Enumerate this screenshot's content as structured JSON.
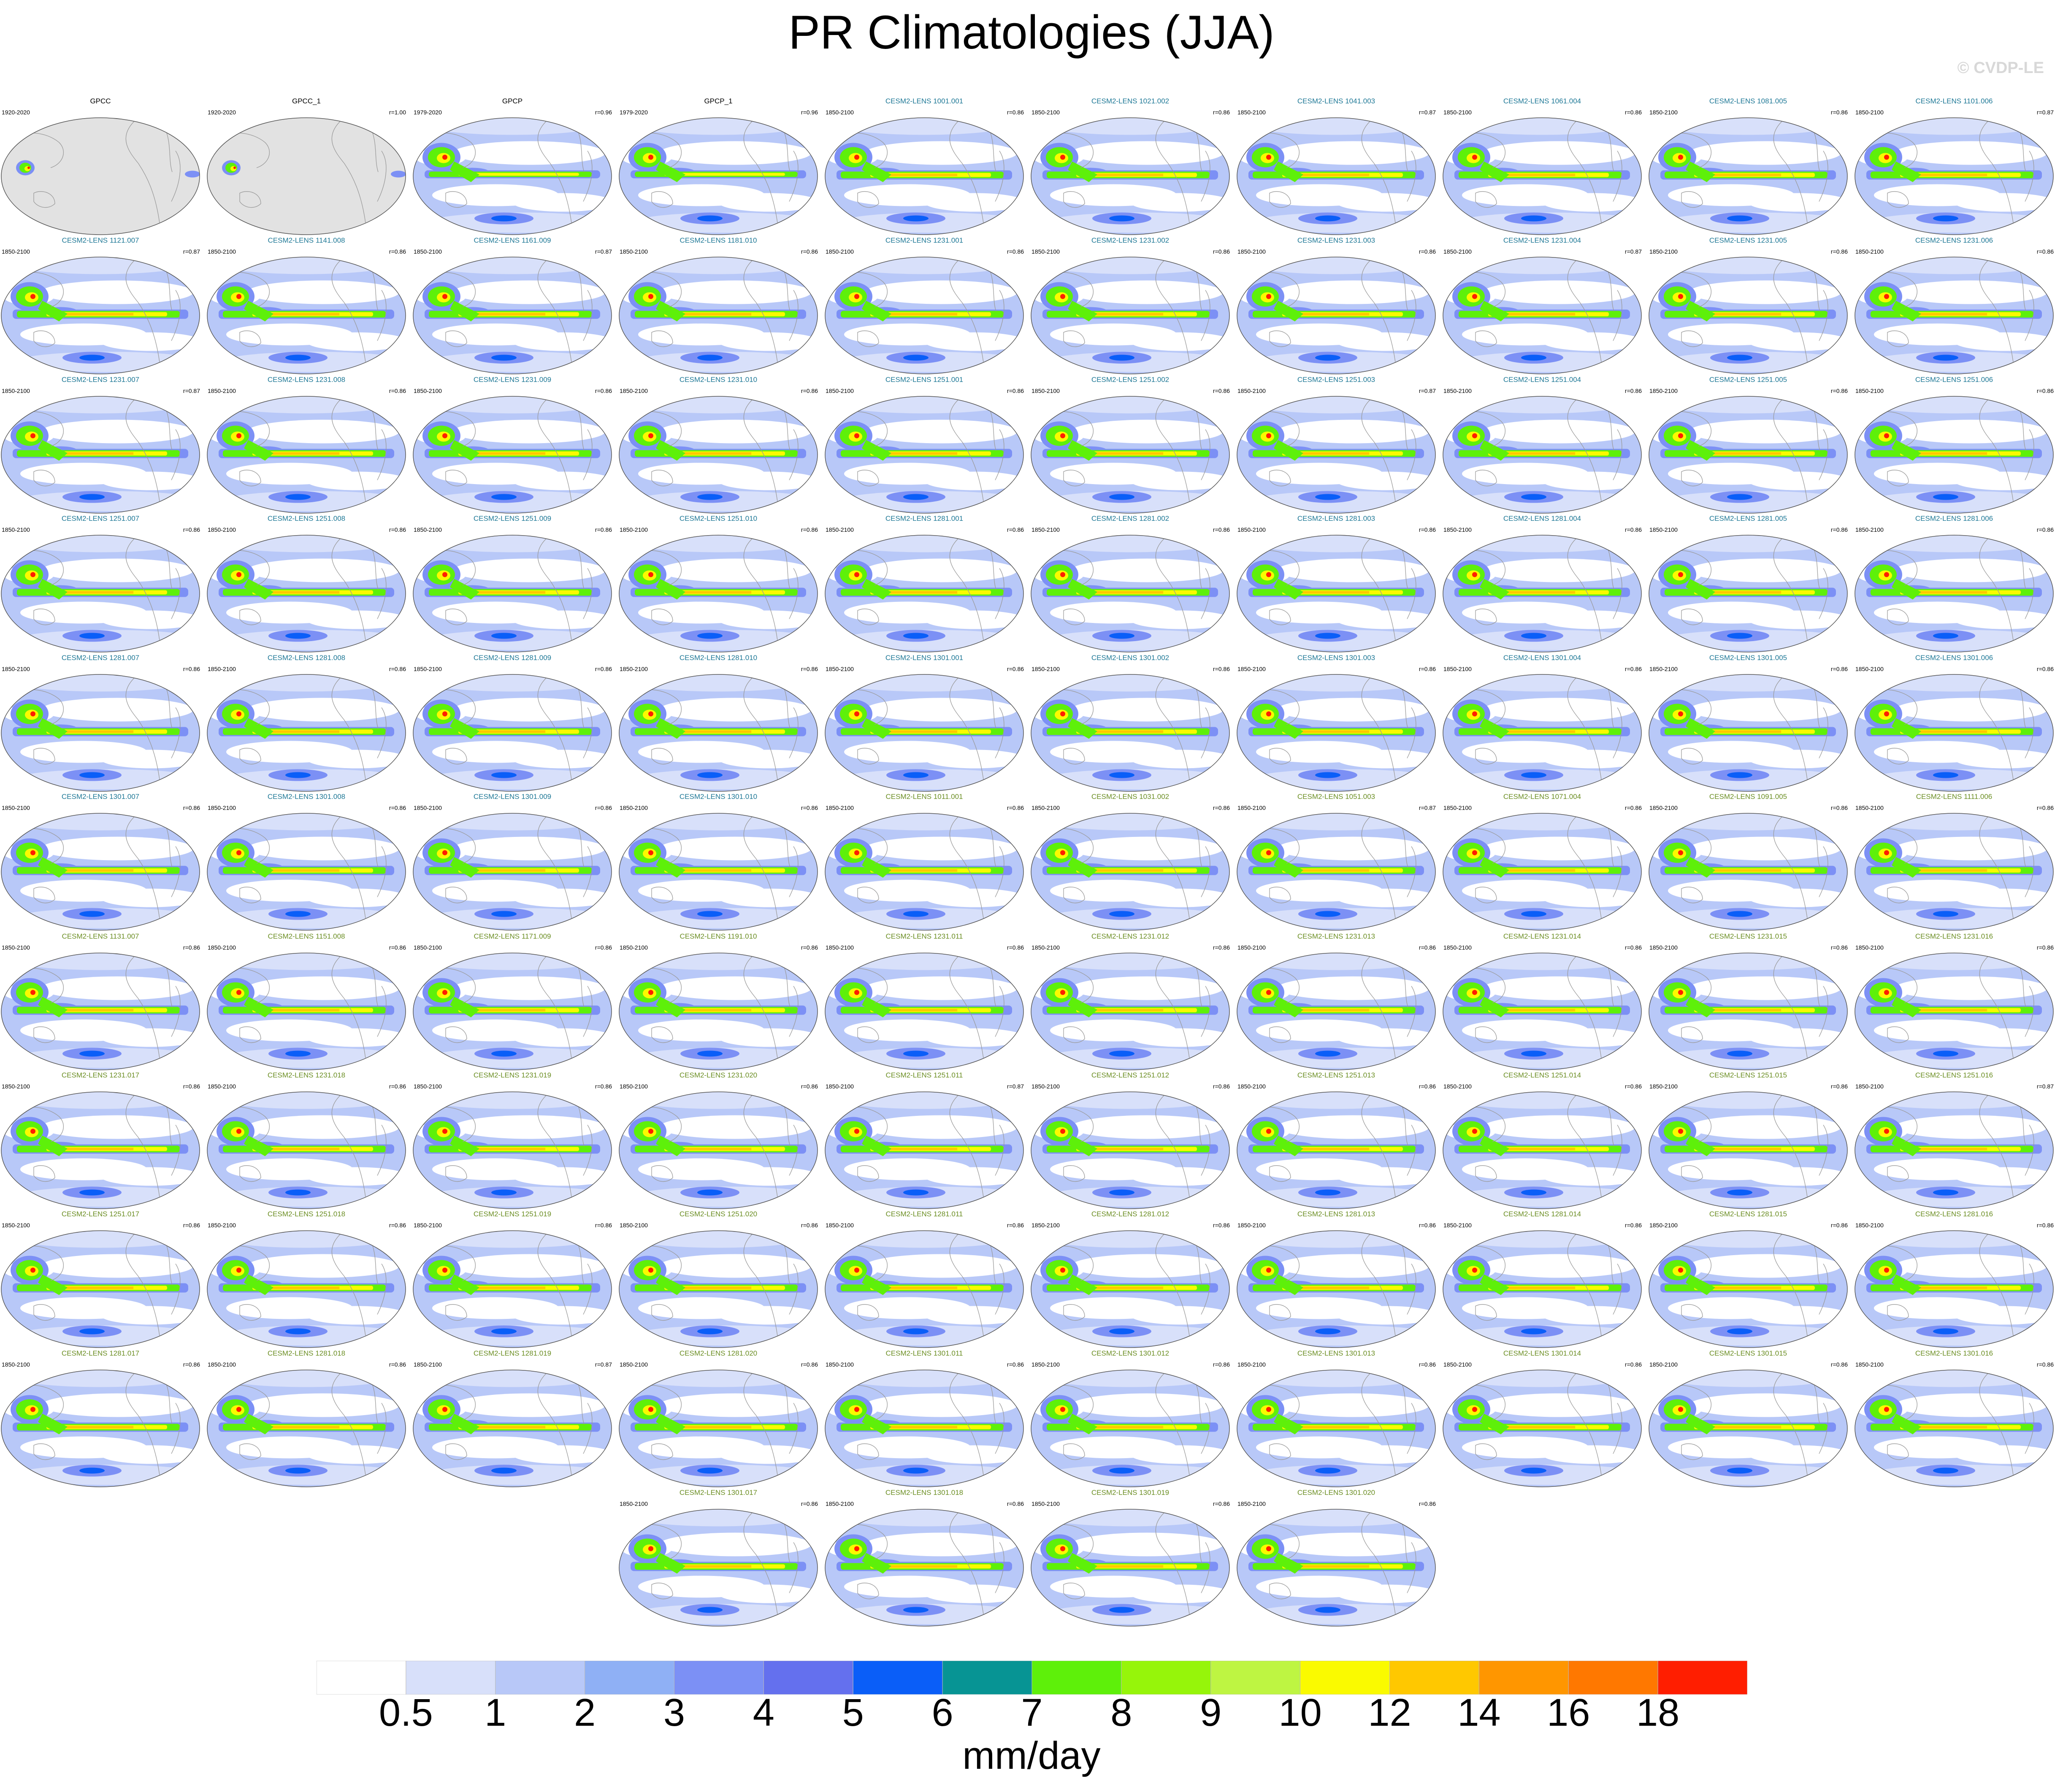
{
  "title": "PR Climatologies (JJA)",
  "watermark": "© CVDP-LE",
  "chart_data": {
    "type": "heatmap",
    "description_panels": "small multiples: global precipitation climatology maps",
    "panels": [
      {
        "title": "GPCC",
        "years": "1920-2020",
        "r": "",
        "obs": true,
        "land_only": true
      },
      {
        "title": "GPCC_1",
        "years": "1920-2020",
        "r": "r=1.00",
        "obs": true,
        "land_only": true
      },
      {
        "title": "GPCP",
        "years": "1979-2020",
        "r": "r=0.96",
        "obs": true
      },
      {
        "title": "GPCP_1",
        "years": "1979-2020",
        "r": "r=0.96",
        "obs": true
      },
      {
        "title": "CESM2-LENS 1001.001",
        "years": "1850-2100",
        "r": "r=0.86",
        "group": "a"
      },
      {
        "title": "CESM2-LENS 1021.002",
        "years": "1850-2100",
        "r": "r=0.86",
        "group": "a"
      },
      {
        "title": "CESM2-LENS 1041.003",
        "years": "1850-2100",
        "r": "r=0.87",
        "group": "a"
      },
      {
        "title": "CESM2-LENS 1061.004",
        "years": "1850-2100",
        "r": "r=0.86",
        "group": "a"
      },
      {
        "title": "CESM2-LENS 1081.005",
        "years": "1850-2100",
        "r": "r=0.86",
        "group": "a"
      },
      {
        "title": "CESM2-LENS 1101.006",
        "years": "1850-2100",
        "r": "r=0.87",
        "group": "a"
      },
      {
        "title": "CESM2-LENS 1121.007",
        "years": "1850-2100",
        "r": "r=0.87",
        "group": "a"
      },
      {
        "title": "CESM2-LENS 1141.008",
        "years": "1850-2100",
        "r": "r=0.86",
        "group": "a"
      },
      {
        "title": "CESM2-LENS 1161.009",
        "years": "1850-2100",
        "r": "r=0.87",
        "group": "a"
      },
      {
        "title": "CESM2-LENS 1181.010",
        "years": "1850-2100",
        "r": "r=0.86",
        "group": "a"
      },
      {
        "title": "CESM2-LENS 1231.001",
        "years": "1850-2100",
        "r": "r=0.86",
        "group": "a"
      },
      {
        "title": "CESM2-LENS 1231.002",
        "years": "1850-2100",
        "r": "r=0.86",
        "group": "a"
      },
      {
        "title": "CESM2-LENS 1231.003",
        "years": "1850-2100",
        "r": "r=0.86",
        "group": "a"
      },
      {
        "title": "CESM2-LENS 1231.004",
        "years": "1850-2100",
        "r": "r=0.87",
        "group": "a"
      },
      {
        "title": "CESM2-LENS 1231.005",
        "years": "1850-2100",
        "r": "r=0.86",
        "group": "a"
      },
      {
        "title": "CESM2-LENS 1231.006",
        "years": "1850-2100",
        "r": "r=0.86",
        "group": "a"
      },
      {
        "title": "CESM2-LENS 1231.007",
        "years": "1850-2100",
        "r": "r=0.87",
        "group": "a"
      },
      {
        "title": "CESM2-LENS 1231.008",
        "years": "1850-2100",
        "r": "r=0.86",
        "group": "a"
      },
      {
        "title": "CESM2-LENS 1231.009",
        "years": "1850-2100",
        "r": "r=0.86",
        "group": "a"
      },
      {
        "title": "CESM2-LENS 1231.010",
        "years": "1850-2100",
        "r": "r=0.86",
        "group": "a"
      },
      {
        "title": "CESM2-LENS 1251.001",
        "years": "1850-2100",
        "r": "r=0.86",
        "group": "a"
      },
      {
        "title": "CESM2-LENS 1251.002",
        "years": "1850-2100",
        "r": "r=0.86",
        "group": "a"
      },
      {
        "title": "CESM2-LENS 1251.003",
        "years": "1850-2100",
        "r": "r=0.87",
        "group": "a"
      },
      {
        "title": "CESM2-LENS 1251.004",
        "years": "1850-2100",
        "r": "r=0.86",
        "group": "a"
      },
      {
        "title": "CESM2-LENS 1251.005",
        "years": "1850-2100",
        "r": "r=0.86",
        "group": "a"
      },
      {
        "title": "CESM2-LENS 1251.006",
        "years": "1850-2100",
        "r": "r=0.86",
        "group": "a"
      },
      {
        "title": "CESM2-LENS 1251.007",
        "years": "1850-2100",
        "r": "r=0.86",
        "group": "a"
      },
      {
        "title": "CESM2-LENS 1251.008",
        "years": "1850-2100",
        "r": "r=0.86",
        "group": "a"
      },
      {
        "title": "CESM2-LENS 1251.009",
        "years": "1850-2100",
        "r": "r=0.86",
        "group": "a"
      },
      {
        "title": "CESM2-LENS 1251.010",
        "years": "1850-2100",
        "r": "r=0.86",
        "group": "a"
      },
      {
        "title": "CESM2-LENS 1281.001",
        "years": "1850-2100",
        "r": "r=0.86",
        "group": "a"
      },
      {
        "title": "CESM2-LENS 1281.002",
        "years": "1850-2100",
        "r": "r=0.86",
        "group": "a"
      },
      {
        "title": "CESM2-LENS 1281.003",
        "years": "1850-2100",
        "r": "r=0.86",
        "group": "a"
      },
      {
        "title": "CESM2-LENS 1281.004",
        "years": "1850-2100",
        "r": "r=0.86",
        "group": "a"
      },
      {
        "title": "CESM2-LENS 1281.005",
        "years": "1850-2100",
        "r": "r=0.86",
        "group": "a"
      },
      {
        "title": "CESM2-LENS 1281.006",
        "years": "1850-2100",
        "r": "r=0.86",
        "group": "a"
      },
      {
        "title": "CESM2-LENS 1281.007",
        "years": "1850-2100",
        "r": "r=0.86",
        "group": "a"
      },
      {
        "title": "CESM2-LENS 1281.008",
        "years": "1850-2100",
        "r": "r=0.86",
        "group": "a"
      },
      {
        "title": "CESM2-LENS 1281.009",
        "years": "1850-2100",
        "r": "r=0.86",
        "group": "a"
      },
      {
        "title": "CESM2-LENS 1281.010",
        "years": "1850-2100",
        "r": "r=0.86",
        "group": "a"
      },
      {
        "title": "CESM2-LENS 1301.001",
        "years": "1850-2100",
        "r": "r=0.86",
        "group": "a"
      },
      {
        "title": "CESM2-LENS 1301.002",
        "years": "1850-2100",
        "r": "r=0.86",
        "group": "a"
      },
      {
        "title": "CESM2-LENS 1301.003",
        "years": "1850-2100",
        "r": "r=0.86",
        "group": "a"
      },
      {
        "title": "CESM2-LENS 1301.004",
        "years": "1850-2100",
        "r": "r=0.86",
        "group": "a"
      },
      {
        "title": "CESM2-LENS 1301.005",
        "years": "1850-2100",
        "r": "r=0.86",
        "group": "a"
      },
      {
        "title": "CESM2-LENS 1301.006",
        "years": "1850-2100",
        "r": "r=0.86",
        "group": "a"
      },
      {
        "title": "CESM2-LENS 1301.007",
        "years": "1850-2100",
        "r": "r=0.86",
        "group": "a"
      },
      {
        "title": "CESM2-LENS 1301.008",
        "years": "1850-2100",
        "r": "r=0.86",
        "group": "a"
      },
      {
        "title": "CESM2-LENS 1301.009",
        "years": "1850-2100",
        "r": "r=0.86",
        "group": "a"
      },
      {
        "title": "CESM2-LENS 1301.010",
        "years": "1850-2100",
        "r": "r=0.86",
        "group": "a"
      },
      {
        "title": "CESM2-LENS 1011.001",
        "years": "1850-2100",
        "r": "r=0.86",
        "group": "b"
      },
      {
        "title": "CESM2-LENS 1031.002",
        "years": "1850-2100",
        "r": "r=0.86",
        "group": "b"
      },
      {
        "title": "CESM2-LENS 1051.003",
        "years": "1850-2100",
        "r": "r=0.87",
        "group": "b"
      },
      {
        "title": "CESM2-LENS 1071.004",
        "years": "1850-2100",
        "r": "r=0.86",
        "group": "b"
      },
      {
        "title": "CESM2-LENS 1091.005",
        "years": "1850-2100",
        "r": "r=0.86",
        "group": "b"
      },
      {
        "title": "CESM2-LENS 1111.006",
        "years": "1850-2100",
        "r": "r=0.86",
        "group": "b"
      },
      {
        "title": "CESM2-LENS 1131.007",
        "years": "1850-2100",
        "r": "r=0.86",
        "group": "b"
      },
      {
        "title": "CESM2-LENS 1151.008",
        "years": "1850-2100",
        "r": "r=0.86",
        "group": "b"
      },
      {
        "title": "CESM2-LENS 1171.009",
        "years": "1850-2100",
        "r": "r=0.86",
        "group": "b"
      },
      {
        "title": "CESM2-LENS 1191.010",
        "years": "1850-2100",
        "r": "r=0.86",
        "group": "b"
      },
      {
        "title": "CESM2-LENS 1231.011",
        "years": "1850-2100",
        "r": "r=0.86",
        "group": "b"
      },
      {
        "title": "CESM2-LENS 1231.012",
        "years": "1850-2100",
        "r": "r=0.86",
        "group": "b"
      },
      {
        "title": "CESM2-LENS 1231.013",
        "years": "1850-2100",
        "r": "r=0.86",
        "group": "b"
      },
      {
        "title": "CESM2-LENS 1231.014",
        "years": "1850-2100",
        "r": "r=0.86",
        "group": "b"
      },
      {
        "title": "CESM2-LENS 1231.015",
        "years": "1850-2100",
        "r": "r=0.86",
        "group": "b"
      },
      {
        "title": "CESM2-LENS 1231.016",
        "years": "1850-2100",
        "r": "r=0.86",
        "group": "b"
      },
      {
        "title": "CESM2-LENS 1231.017",
        "years": "1850-2100",
        "r": "r=0.86",
        "group": "b"
      },
      {
        "title": "CESM2-LENS 1231.018",
        "years": "1850-2100",
        "r": "r=0.86",
        "group": "b"
      },
      {
        "title": "CESM2-LENS 1231.019",
        "years": "1850-2100",
        "r": "r=0.86",
        "group": "b"
      },
      {
        "title": "CESM2-LENS 1231.020",
        "years": "1850-2100",
        "r": "r=0.86",
        "group": "b"
      },
      {
        "title": "CESM2-LENS 1251.011",
        "years": "1850-2100",
        "r": "r=0.87",
        "group": "b"
      },
      {
        "title": "CESM2-LENS 1251.012",
        "years": "1850-2100",
        "r": "r=0.86",
        "group": "b"
      },
      {
        "title": "CESM2-LENS 1251.013",
        "years": "1850-2100",
        "r": "r=0.86",
        "group": "b"
      },
      {
        "title": "CESM2-LENS 1251.014",
        "years": "1850-2100",
        "r": "r=0.86",
        "group": "b"
      },
      {
        "title": "CESM2-LENS 1251.015",
        "years": "1850-2100",
        "r": "r=0.86",
        "group": "b"
      },
      {
        "title": "CESM2-LENS 1251.016",
        "years": "1850-2100",
        "r": "r=0.87",
        "group": "b"
      },
      {
        "title": "CESM2-LENS 1251.017",
        "years": "1850-2100",
        "r": "r=0.86",
        "group": "b"
      },
      {
        "title": "CESM2-LENS 1251.018",
        "years": "1850-2100",
        "r": "r=0.86",
        "group": "b"
      },
      {
        "title": "CESM2-LENS 1251.019",
        "years": "1850-2100",
        "r": "r=0.86",
        "group": "b"
      },
      {
        "title": "CESM2-LENS 1251.020",
        "years": "1850-2100",
        "r": "r=0.86",
        "group": "b"
      },
      {
        "title": "CESM2-LENS 1281.011",
        "years": "1850-2100",
        "r": "r=0.86",
        "group": "b"
      },
      {
        "title": "CESM2-LENS 1281.012",
        "years": "1850-2100",
        "r": "r=0.86",
        "group": "b"
      },
      {
        "title": "CESM2-LENS 1281.013",
        "years": "1850-2100",
        "r": "r=0.86",
        "group": "b"
      },
      {
        "title": "CESM2-LENS 1281.014",
        "years": "1850-2100",
        "r": "r=0.86",
        "group": "b"
      },
      {
        "title": "CESM2-LENS 1281.015",
        "years": "1850-2100",
        "r": "r=0.86",
        "group": "b"
      },
      {
        "title": "CESM2-LENS 1281.016",
        "years": "1850-2100",
        "r": "r=0.86",
        "group": "b"
      },
      {
        "title": "CESM2-LENS 1281.017",
        "years": "1850-2100",
        "r": "r=0.86",
        "group": "b"
      },
      {
        "title": "CESM2-LENS 1281.018",
        "years": "1850-2100",
        "r": "r=0.86",
        "group": "b"
      },
      {
        "title": "CESM2-LENS 1281.019",
        "years": "1850-2100",
        "r": "r=0.87",
        "group": "b"
      },
      {
        "title": "CESM2-LENS 1281.020",
        "years": "1850-2100",
        "r": "r=0.86",
        "group": "b"
      },
      {
        "title": "CESM2-LENS 1301.011",
        "years": "1850-2100",
        "r": "r=0.86",
        "group": "b"
      },
      {
        "title": "CESM2-LENS 1301.012",
        "years": "1850-2100",
        "r": "r=0.86",
        "group": "b"
      },
      {
        "title": "CESM2-LENS 1301.013",
        "years": "1850-2100",
        "r": "r=0.86",
        "group": "b"
      },
      {
        "title": "CESM2-LENS 1301.014",
        "years": "1850-2100",
        "r": "r=0.86",
        "group": "b"
      },
      {
        "title": "CESM2-LENS 1301.015",
        "years": "1850-2100",
        "r": "r=0.86",
        "group": "b"
      },
      {
        "title": "CESM2-LENS 1301.016",
        "years": "1850-2100",
        "r": "r=0.86",
        "group": "b"
      },
      {
        "title": "CESM2-LENS 1301.017",
        "years": "1850-2100",
        "r": "r=0.86",
        "group": "b"
      },
      {
        "title": "CESM2-LENS 1301.018",
        "years": "1850-2100",
        "r": "r=0.86",
        "group": "b"
      },
      {
        "title": "CESM2-LENS 1301.019",
        "years": "1850-2100",
        "r": "r=0.86",
        "group": "b"
      },
      {
        "title": "CESM2-LENS 1301.020",
        "years": "1850-2100",
        "r": "r=0.86",
        "group": "b"
      }
    ],
    "colorbar": {
      "units": "mm/day",
      "levels": [
        "0.5",
        "1",
        "2",
        "3",
        "4",
        "5",
        "6",
        "7",
        "8",
        "9",
        "10",
        "12",
        "14",
        "16",
        "18"
      ],
      "colors": [
        "#ffffff",
        "#d8e0fa",
        "#b8c8f8",
        "#8fb0f5",
        "#7c90f5",
        "#6470ee",
        "#0a5ef8",
        "#079494",
        "#5ef00a",
        "#96f50a",
        "#bef542",
        "#fafa00",
        "#ffc800",
        "#ff9600",
        "#ff7800",
        "#ff1e00"
      ]
    },
    "title_colors": {
      "obs": "#000000",
      "a": "#1e7896",
      "b": "#6b8e23"
    },
    "map_colors": {
      "ocean_dry": "#ffffff",
      "light": "#d8e0fa",
      "mid": "#b8c8f8",
      "blue": "#7c90f5",
      "deep": "#0a5ef8",
      "land_mask": "#e2e2e2",
      "coast": "#9a9a9a",
      "green": "#5ef00a",
      "yellow": "#fafa00",
      "orange": "#ffc800",
      "red": "#ff1e00"
    }
  }
}
